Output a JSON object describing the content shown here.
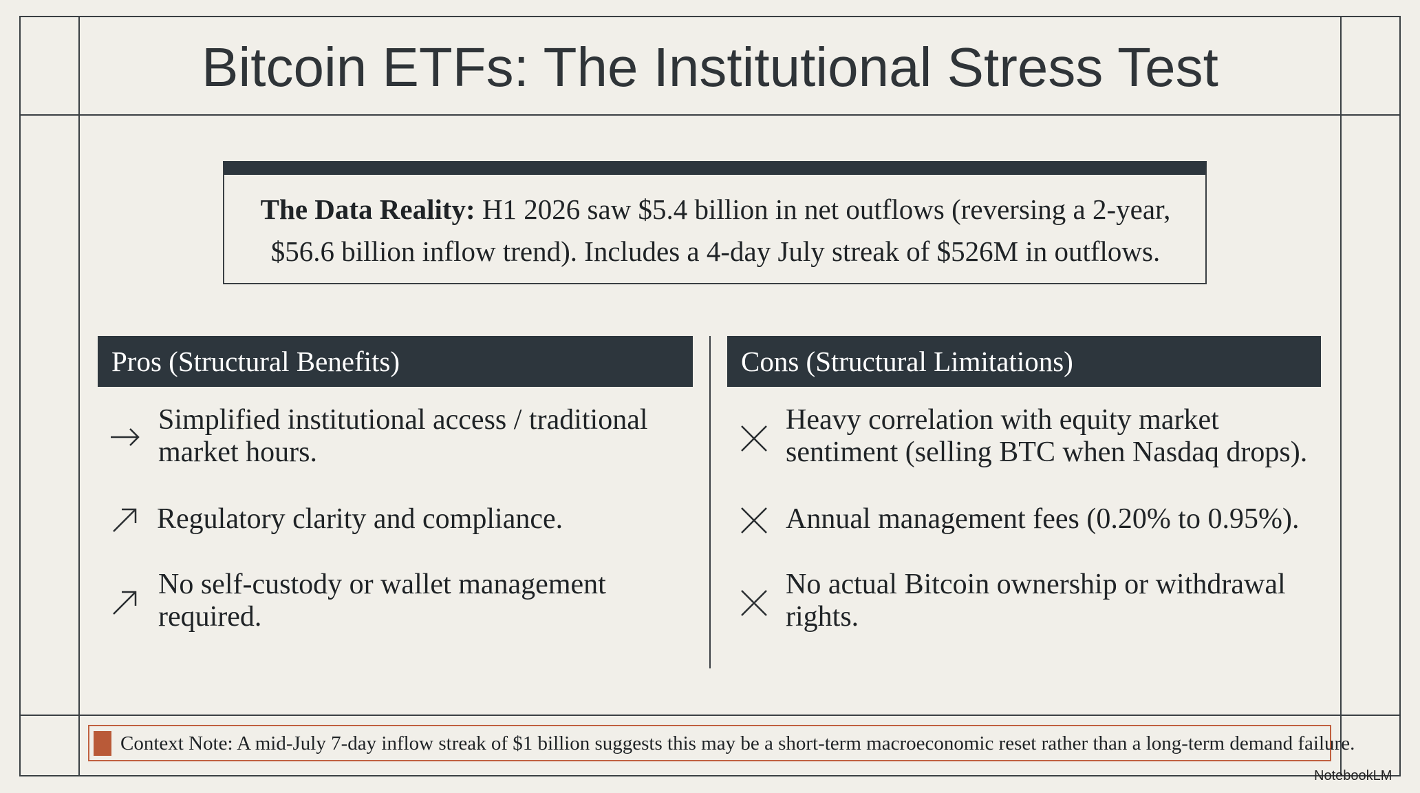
{
  "title": "Bitcoin ETFs: The Institutional Stress Test",
  "data_reality": {
    "label": "The Data Reality:",
    "text": "H1 2026 saw $5.4 billion in net outflows (reversing a 2-year, $56.6 billion inflow trend). Includes a 4-day July streak of $526M in outflows."
  },
  "pros": {
    "heading": "Pros (Structural Benefits)",
    "items": [
      "Simplified institutional access / traditional market hours.",
      "Regulatory clarity and compliance.",
      "No self-custody or wallet management required."
    ]
  },
  "cons": {
    "heading": "Cons (Structural Limitations)",
    "items": [
      "Heavy correlation with equity market sentiment (selling BTC when Nasdaq drops).",
      "Annual management fees (0.20% to 0.95%).",
      "No actual Bitcoin ownership or withdrawal rights."
    ]
  },
  "context_note": "Context Note: A mid-July 7-day inflow streak of $1 billion suggests this may be a short-term macroeconomic reset rather than a long-term demand failure.",
  "watermark": "NotebookLM"
}
